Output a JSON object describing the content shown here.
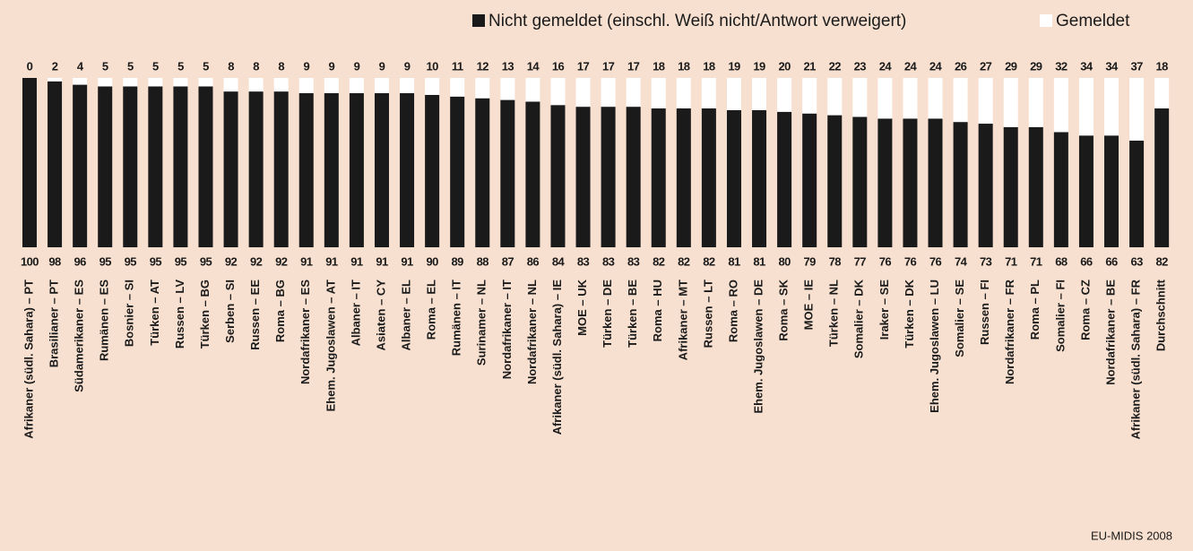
{
  "chart_data": {
    "type": "stacked_bar",
    "source": "EU-MIDIS 2008",
    "categories": [
      "Afrikaner (südl. Sahara) – PT",
      "Brasilianer – PT",
      "Südamerikaner – ES",
      "Rumänen – ES",
      "Bosnier – SI",
      "Türken – AT",
      "Russen – LV",
      "Türken – BG",
      "Serben – SI",
      "Russen – EE",
      "Roma – BG",
      "Nordafrikaner – ES",
      "Ehem. Jugoslawen – AT",
      "Albaner – IT",
      "Asiaten – CY",
      "Albaner – EL",
      "Roma – EL",
      "Rumänen – IT",
      "Surinamer – NL",
      "Nordafrikaner – IT",
      "Nordafrikaner – NL",
      "Afrikaner (südl. Sahara) – IE",
      "MOE – UK",
      "Türken – DE",
      "Türken – BE",
      "Roma – HU",
      "Afrikaner – MT",
      "Russen – LT",
      "Roma – RO",
      "Ehem. Jugoslawen – DE",
      "Roma – SK",
      "MOE – IE",
      "Türken – NL",
      "Somalier – DK",
      "Iraker – SE",
      "Türken – DK",
      "Ehem. Jugoslawen – LU",
      "Somalier – SE",
      "Russen – FI",
      "Nordafrikaner – FR",
      "Roma – PL",
      "Somalier – FI",
      "Roma – CZ",
      "Nordafrikaner – BE",
      "Afrikaner (südl. Sahara) – FR",
      "Durchschnitt"
    ],
    "series": [
      {
        "name": "Nicht gemeldet (einschl. Weiß nicht/Antwort verweigert)",
        "color": "#1a1a1a",
        "values": [
          100,
          98,
          96,
          95,
          95,
          95,
          95,
          95,
          92,
          92,
          92,
          91,
          91,
          91,
          91,
          91,
          90,
          89,
          88,
          87,
          86,
          84,
          83,
          83,
          83,
          82,
          82,
          82,
          81,
          81,
          80,
          79,
          78,
          77,
          76,
          76,
          76,
          74,
          73,
          71,
          71,
          68,
          66,
          66,
          63,
          82
        ]
      },
      {
        "name": "Gemeldet",
        "color": "#ffffff",
        "values": [
          0,
          2,
          4,
          5,
          5,
          5,
          5,
          5,
          8,
          8,
          8,
          9,
          9,
          9,
          9,
          9,
          10,
          11,
          12,
          13,
          14,
          16,
          17,
          17,
          17,
          18,
          18,
          18,
          19,
          19,
          20,
          21,
          22,
          23,
          24,
          24,
          24,
          26,
          27,
          29,
          29,
          32,
          34,
          34,
          37,
          18
        ]
      }
    ],
    "ylim": [
      0,
      100
    ],
    "legend": "top-right"
  }
}
